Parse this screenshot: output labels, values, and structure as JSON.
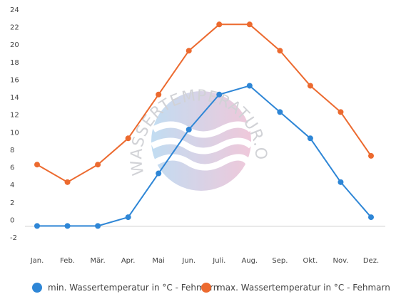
{
  "watermark": {
    "text": "WASSERTEMPERATUR.ORG"
  },
  "chart_data": {
    "type": "line",
    "categories": [
      "Jan.",
      "Feb.",
      "Mär.",
      "Apr.",
      "Mai",
      "Jun.",
      "Juli.",
      "Aug.",
      "Sep.",
      "Okt.",
      "Nov.",
      "Dez."
    ],
    "series": [
      {
        "name": "min. Wassertemperatur in °C - Fehmarn",
        "color": "#2e86d6",
        "values": [
          0,
          0,
          0,
          1,
          6,
          11,
          15,
          16,
          13,
          10,
          5,
          1
        ]
      },
      {
        "name": "max. Wassertemperatur in °C - Fehmarn",
        "color": "#ec6a2f",
        "values": [
          7,
          5,
          7,
          10,
          15,
          20,
          23,
          23,
          20,
          16,
          13,
          8
        ]
      }
    ],
    "ylim": [
      -2,
      24
    ],
    "yticks": [
      -2,
      0,
      2,
      4,
      6,
      8,
      10,
      12,
      14,
      16,
      18,
      20,
      22,
      24
    ],
    "xlabel": "",
    "ylabel": "",
    "grid": false,
    "legend_position": "bottom"
  }
}
